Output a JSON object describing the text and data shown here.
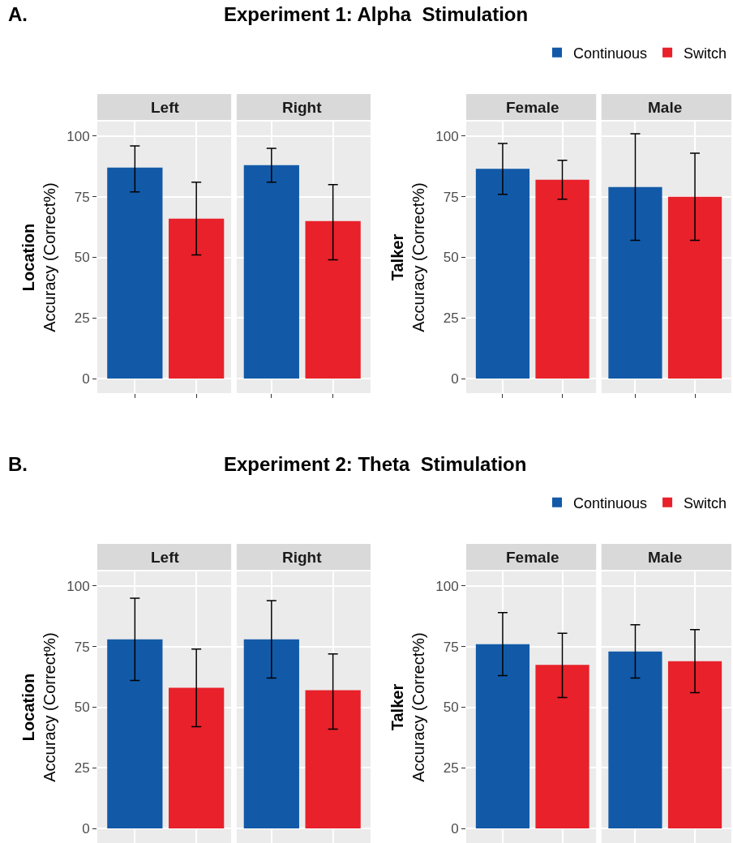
{
  "chart_data": [
    {
      "type": "bar",
      "title": "Experiment 1: Alpha  Stimulation",
      "annotations": [
        "A."
      ],
      "ylabel": "Location\nAccuracy (Correct%)",
      "categories": [
        "Left",
        "Right"
      ],
      "ylim": [
        -6,
        106
      ],
      "yticks": [
        0,
        25,
        50,
        75,
        100
      ],
      "grid": true,
      "series": [
        {
          "color": "#125aa8",
          "values": [
            87,
            88
          ],
          "errors": [
            [
              77,
              96
            ],
            [
              81,
              95
            ]
          ]
        },
        {
          "color": "#e8212a",
          "values": [
            66,
            65
          ],
          "errors": [
            [
              51,
              81
            ],
            [
              49,
              80
            ]
          ]
        }
      ]
    },
    {
      "type": "bar",
      "ylabel": "Talker\nAccuracy (Correct%)",
      "categories": [
        "Female",
        "Male"
      ],
      "ylim": [
        -6,
        106
      ],
      "yticks": [
        0,
        25,
        50,
        75,
        100
      ],
      "grid": true,
      "legend": "top right",
      "series": [
        {
          "name": "Continuous",
          "color": "#125aa8",
          "values": [
            86.5,
            79
          ],
          "errors": [
            [
              76,
              97
            ],
            [
              57,
              101
            ]
          ]
        },
        {
          "name": "Switch",
          "color": "#e8212a",
          "values": [
            82,
            75
          ],
          "errors": [
            [
              74,
              90
            ],
            [
              57,
              93
            ]
          ]
        }
      ]
    },
    {
      "type": "bar",
      "title": "Experiment 2: Theta  Stimulation",
      "annotations": [
        "B."
      ],
      "ylabel": "Location\nAccuracy (Correct%)",
      "categories": [
        "Left",
        "Right"
      ],
      "ylim": [
        -6,
        106
      ],
      "yticks": [
        0,
        25,
        50,
        75,
        100
      ],
      "grid": true,
      "series": [
        {
          "color": "#125aa8",
          "values": [
            78,
            78
          ],
          "errors": [
            [
              61,
              95
            ],
            [
              62,
              94
            ]
          ]
        },
        {
          "color": "#e8212a",
          "values": [
            58,
            57
          ],
          "errors": [
            [
              42,
              74
            ],
            [
              41,
              72
            ]
          ]
        }
      ]
    },
    {
      "type": "bar",
      "ylabel": "Talker\nAccuracy (Correct%)",
      "categories": [
        "Female",
        "Male"
      ],
      "ylim": [
        -6,
        106
      ],
      "yticks": [
        0,
        25,
        50,
        75,
        100
      ],
      "grid": true,
      "legend": "top right",
      "series": [
        {
          "name": "Continuous",
          "color": "#125aa8",
          "values": [
            76,
            73
          ],
          "errors": [
            [
              63,
              89
            ],
            [
              62,
              84
            ]
          ]
        },
        {
          "name": "Switch",
          "color": "#e8212a",
          "values": [
            67.5,
            69
          ],
          "errors": [
            [
              54,
              80.5
            ],
            [
              56,
              82
            ]
          ]
        }
      ]
    }
  ]
}
